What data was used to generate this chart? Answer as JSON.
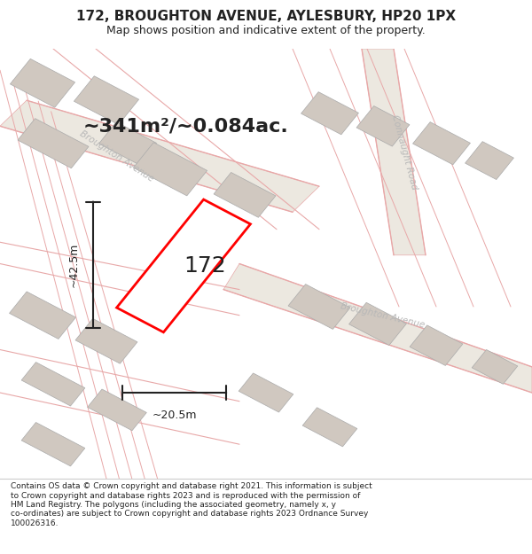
{
  "title_line1": "172, BROUGHTON AVENUE, AYLESBURY, HP20 1PX",
  "title_line2": "Map shows position and indicative extent of the property.",
  "area_text": "~341m²/~0.084ac.",
  "label_172": "172",
  "dim_width": "~20.5m",
  "dim_height": "~42.5m",
  "street_label_upper": "Broughton Avenue",
  "street_label_connaught": "Connaught Road",
  "street_label_lower": "Broughton Avenue",
  "copyright_text": "Contains OS data © Crown copyright and database right 2021. This information is subject\nto Crown copyright and database rights 2023 and is reproduced with the permission of\nHM Land Registry. The polygons (including the associated geometry, namely x, y\nco-ordinates) are subject to Crown copyright and database rights 2023 Ordnance Survey\n100026316.",
  "bg_color": "#f5f5f0",
  "map_bg": "#f2eeea",
  "road_color": "#e8a8a8",
  "building_color": "#d0c8c0",
  "property_color": "#ff0000",
  "dim_line_color": "#222222",
  "text_color": "#222222",
  "street_text_color": "#b8b8b8",
  "fig_width": 6.0,
  "fig_height": 6.25,
  "dpi": 100
}
